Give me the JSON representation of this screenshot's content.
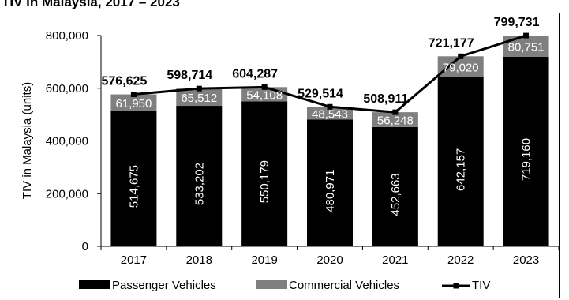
{
  "title": "TIV in Malaysia, 2017 – 2023",
  "chart_data": {
    "type": "bar",
    "stacked": true,
    "categories": [
      "2017",
      "2018",
      "2019",
      "2020",
      "2021",
      "2022",
      "2023"
    ],
    "series": [
      {
        "name": "Passenger Vehicles",
        "type": "bar",
        "color": "#000000",
        "values": [
          514675,
          533202,
          550179,
          480971,
          452663,
          642157,
          719160
        ]
      },
      {
        "name": "Commercial Vehicles",
        "type": "bar",
        "color": "#7f7f7f",
        "values": [
          61950,
          65512,
          54108,
          48543,
          56248,
          79020,
          80751
        ]
      },
      {
        "name": "TIV",
        "type": "line",
        "color": "#000000",
        "values": [
          576625,
          598714,
          604287,
          529514,
          508911,
          721177,
          799731
        ]
      }
    ],
    "passenger_labels": [
      "514,675",
      "533,202",
      "550,179",
      "480,971",
      "452,663",
      "642,157",
      "719,160"
    ],
    "commercial_labels": [
      "61,950",
      "65,512",
      "54,108",
      "48,543",
      "56,248",
      "79,020",
      "80,751"
    ],
    "tiv_labels": [
      "576,625",
      "598,714",
      "604,287",
      "529,514",
      "508,911",
      "721,177",
      "799,731"
    ],
    "ylabel": "TIV in Malaysia (units)",
    "ylim": [
      0,
      800000
    ],
    "yticks": [
      0,
      200000,
      400000,
      600000,
      800000
    ],
    "ytick_labels": [
      "0",
      "200,000",
      "400,000",
      "600,000",
      "800,000"
    ],
    "grid": false,
    "legend_position": "bottom",
    "legend": [
      "Passenger Vehicles",
      "Commercial Vehicles",
      "TIV"
    ]
  }
}
